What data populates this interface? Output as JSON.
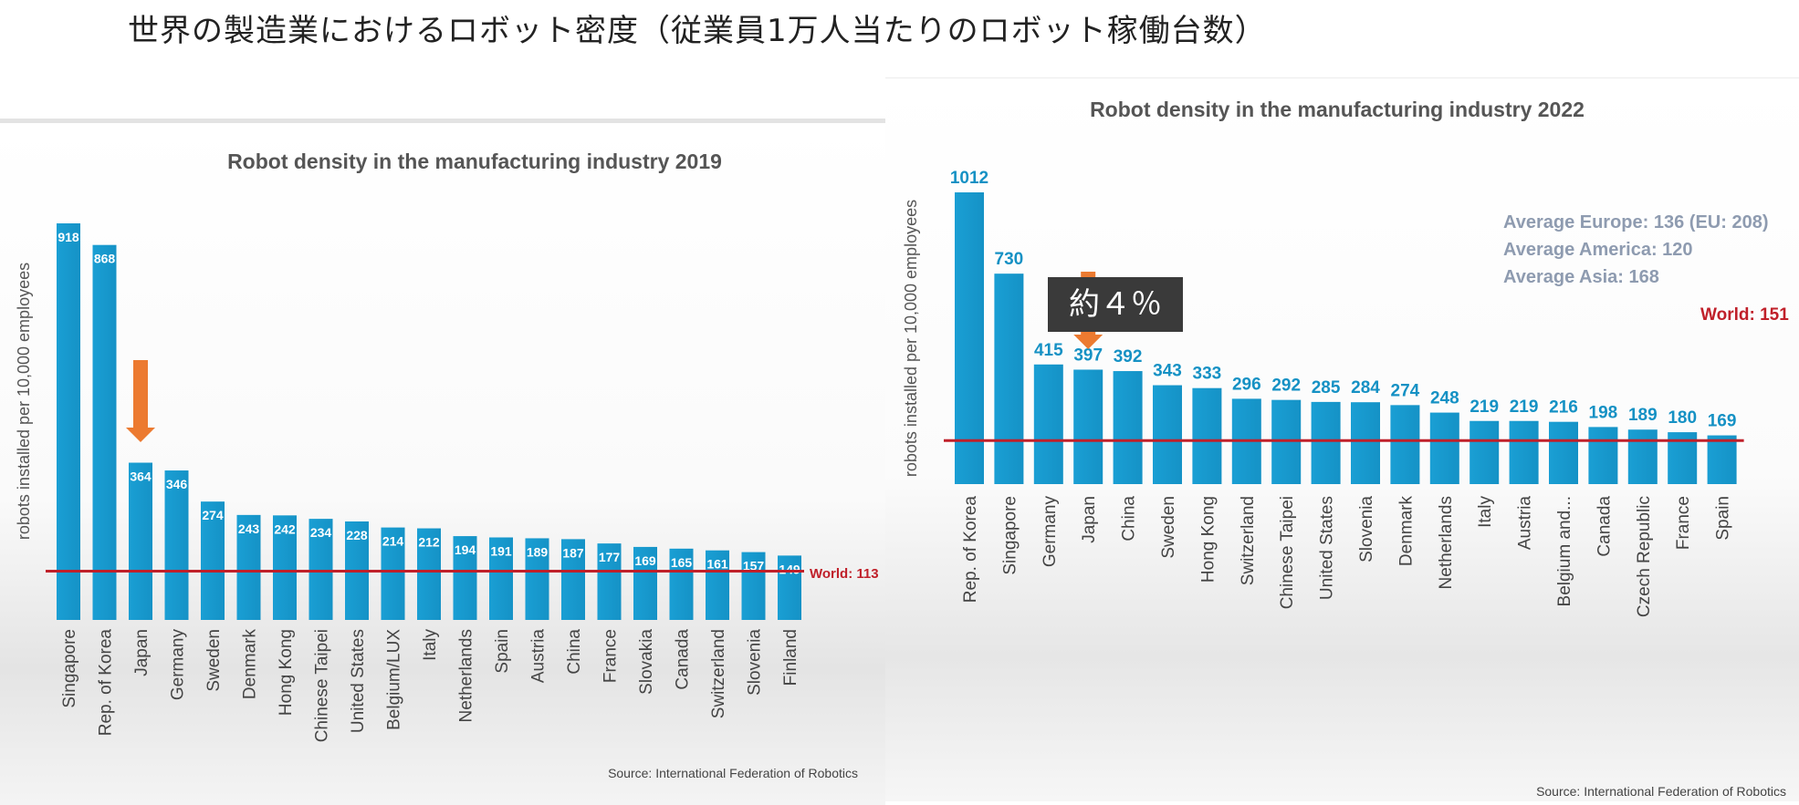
{
  "slide_title": "世界の製造業におけるロボット密度（従業員1万人当たりのロボット稼働台数）",
  "callout_text": "約４％",
  "colors": {
    "bar": "#1592c6",
    "world_line": "#c0202a",
    "arrow": "#ec7a30",
    "value_label": "#1591c4"
  },
  "chart_data": [
    {
      "type": "bar",
      "title": "Robot density in the manufacturing industry 2019",
      "ylabel": "robots installed per 10,000 employees",
      "xlabel": "",
      "categories": [
        "Singapore",
        "Rep. of Korea",
        "Japan",
        "Germany",
        "Sweden",
        "Denmark",
        "Hong Kong",
        "Chinese Taipei",
        "United States",
        "Belgium/LUX",
        "Italy",
        "Netherlands",
        "Spain",
        "Austria",
        "China",
        "France",
        "Slovakia",
        "Canada",
        "Switzerland",
        "Slovenia",
        "Finland"
      ],
      "values": [
        918,
        868,
        364,
        346,
        274,
        243,
        242,
        234,
        228,
        214,
        212,
        194,
        191,
        189,
        187,
        177,
        169,
        165,
        161,
        157,
        149
      ],
      "value_labels": [
        "918",
        "868",
        "364",
        "346",
        "274",
        "243",
        "242",
        "234",
        "228",
        "214",
        "212",
        "194",
        "191",
        "189",
        "187",
        "177",
        "169",
        "165",
        "161",
        "157",
        "149"
      ],
      "reference_line": {
        "label": "World: 113",
        "value": 113
      },
      "highlight": {
        "category": "Japan",
        "marker": "arrow"
      },
      "source": "Source: International  Federation of Robotics",
      "ylim": [
        0,
        918
      ]
    },
    {
      "type": "bar",
      "title": "Robot density in the manufacturing industry 2022",
      "ylabel": "robots installed per 10,000 employees",
      "xlabel": "",
      "categories": [
        "Rep. of Korea",
        "Singapore",
        "Germany",
        "Japan",
        "China",
        "Sweden",
        "Hong Kong",
        "Switzerland",
        "Chinese Taipei",
        "United States",
        "Slovenia",
        "Denmark",
        "Netherlands",
        "Italy",
        "Austria",
        "Belgium and...",
        "Canada",
        "Czech Republic",
        "France",
        "Spain"
      ],
      "values": [
        1012,
        730,
        415,
        397,
        392,
        343,
        333,
        296,
        292,
        285,
        284,
        274,
        248,
        219,
        219,
        216,
        198,
        189,
        180,
        169
      ],
      "value_labels": [
        "1012",
        "730",
        "415",
        "397",
        "392",
        "343",
        "333",
        "296",
        "292",
        "285",
        "284",
        "274",
        "248",
        "219",
        "219",
        "216",
        "198",
        "189",
        "180",
        "169"
      ],
      "reference_line": {
        "label": "World: 151",
        "value": 151
      },
      "highlight": {
        "category": "Japan",
        "marker": "arrow"
      },
      "annotations": [
        "Average Europe: 136  (EU: 208)",
        "Average America: 120",
        "Average Asia: 168"
      ],
      "source": "Source: International Federation of Robotics",
      "ylim": [
        0,
        1012
      ]
    }
  ]
}
